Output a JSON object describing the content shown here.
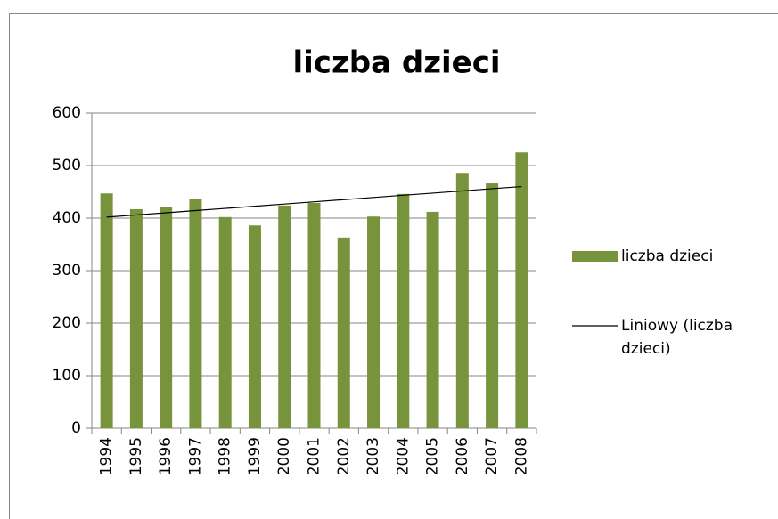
{
  "chart_data": {
    "type": "bar",
    "title": "liczba dzieci",
    "categories": [
      "1994",
      "1995",
      "1996",
      "1997",
      "1998",
      "1999",
      "2000",
      "2001",
      "2002",
      "2003",
      "2004",
      "2005",
      "2006",
      "2007",
      "2008"
    ],
    "series": [
      {
        "name": "liczba dzieci",
        "color": "#77933c",
        "values": [
          447,
          417,
          422,
          437,
          402,
          386,
          424,
          429,
          363,
          403,
          446,
          412,
          486,
          466,
          525
        ]
      },
      {
        "name": "Liniowy (liczba dzieci)",
        "type": "line",
        "color": "#000000",
        "values": [
          401.9,
          406.0,
          410.2,
          414.4,
          418.5,
          422.7,
          426.8,
          431.0,
          435.2,
          439.3,
          443.5,
          447.6,
          451.8,
          456.0,
          460.1
        ]
      }
    ],
    "ylim": [
      0,
      600
    ],
    "yticks": [
      0,
      100,
      200,
      300,
      400,
      500,
      600
    ],
    "grid": true,
    "legend": "right"
  }
}
